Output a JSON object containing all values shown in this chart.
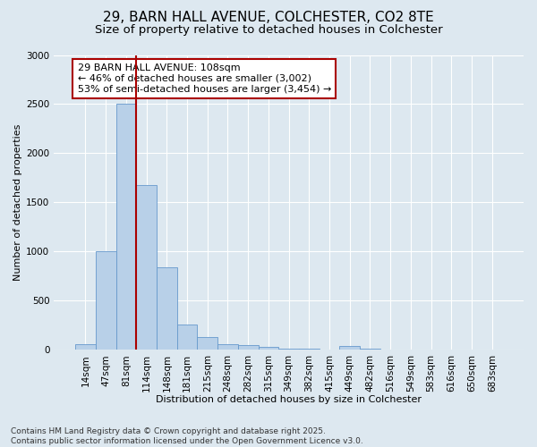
{
  "title": "29, BARN HALL AVENUE, COLCHESTER, CO2 8TE",
  "subtitle": "Size of property relative to detached houses in Colchester",
  "xlabel": "Distribution of detached houses by size in Colchester",
  "ylabel": "Number of detached properties",
  "categories": [
    "14sqm",
    "47sqm",
    "81sqm",
    "114sqm",
    "148sqm",
    "181sqm",
    "215sqm",
    "248sqm",
    "282sqm",
    "315sqm",
    "349sqm",
    "382sqm",
    "415sqm",
    "449sqm",
    "482sqm",
    "516sqm",
    "549sqm",
    "583sqm",
    "616sqm",
    "650sqm",
    "683sqm"
  ],
  "values": [
    55,
    1000,
    2500,
    1680,
    840,
    260,
    130,
    60,
    50,
    30,
    15,
    10,
    7,
    35,
    10,
    5,
    3,
    2,
    1,
    1,
    2
  ],
  "bar_color": "#b8d0e8",
  "bar_edgecolor": "#6699cc",
  "marker_color": "#aa0000",
  "annotation_text": "29 BARN HALL AVENUE: 108sqm\n← 46% of detached houses are smaller (3,002)\n53% of semi-detached houses are larger (3,454) →",
  "annotation_boxcolor": "white",
  "annotation_edgecolor": "#aa0000",
  "ylim": [
    0,
    3000
  ],
  "yticks": [
    0,
    500,
    1000,
    1500,
    2000,
    2500,
    3000
  ],
  "footer_text": "Contains HM Land Registry data © Crown copyright and database right 2025.\nContains public sector information licensed under the Open Government Licence v3.0.",
  "bg_color": "#dde8f0",
  "grid_color": "white",
  "title_fontsize": 11,
  "subtitle_fontsize": 9.5,
  "axis_label_fontsize": 8,
  "tick_fontsize": 7.5,
  "footer_fontsize": 6.5
}
